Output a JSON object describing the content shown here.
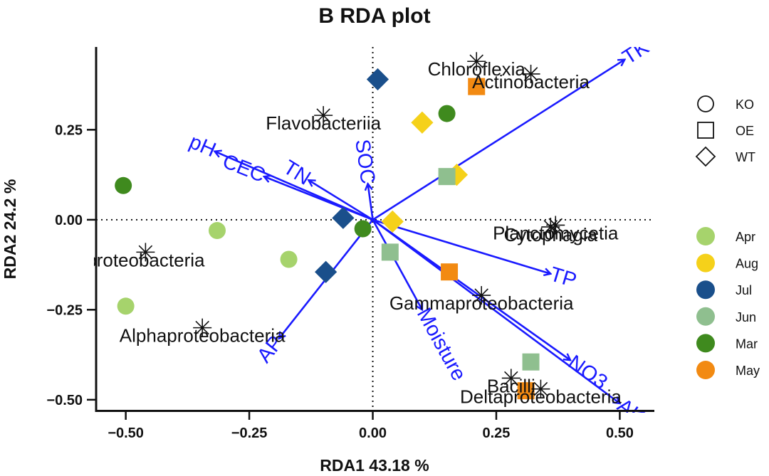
{
  "chart_data": {
    "type": "scatter",
    "title": "B RDA plot",
    "xlabel": "RDA1 43.18  %",
    "ylabel": "RDA2 24.2  %",
    "xlim": [
      -0.56,
      0.57
    ],
    "ylim": [
      -0.53,
      0.48
    ],
    "xticks": [
      -0.5,
      -0.25,
      0.0,
      0.25,
      0.5
    ],
    "xtick_labels": [
      "−0.50",
      "−0.25",
      "0.00",
      "0.25",
      "0.50"
    ],
    "yticks": [
      -0.5,
      -0.25,
      0.0,
      0.25
    ],
    "ytick_labels": [
      "−0.50",
      "−0.25",
      "0.00",
      "0.25"
    ],
    "reference_lines": {
      "x": 0,
      "y": 0,
      "style": "dotted"
    },
    "shape_legend": [
      {
        "label": "KO",
        "shape": "circle"
      },
      {
        "label": "OE",
        "shape": "square"
      },
      {
        "label": "WT",
        "shape": "diamond"
      }
    ],
    "color_legend": [
      {
        "label": "Apr",
        "color": "#a6d36c"
      },
      {
        "label": "Aug",
        "color": "#f5d11a"
      },
      {
        "label": "Jul",
        "color": "#1a4f8b"
      },
      {
        "label": "Jun",
        "color": "#8fbf8f"
      },
      {
        "label": "Mar",
        "color": "#3f8a1e"
      },
      {
        "label": "May",
        "color": "#f28a12"
      }
    ],
    "samples": [
      {
        "x": 0.01,
        "y": 0.39,
        "shape": "diamond",
        "month": "Jul"
      },
      {
        "x": 0.21,
        "y": 0.37,
        "shape": "square",
        "month": "May"
      },
      {
        "x": 0.1,
        "y": 0.27,
        "shape": "diamond",
        "month": "Aug"
      },
      {
        "x": 0.15,
        "y": 0.295,
        "shape": "circle",
        "month": "Mar"
      },
      {
        "x": 0.17,
        "y": 0.125,
        "shape": "diamond",
        "month": "Aug"
      },
      {
        "x": 0.15,
        "y": 0.12,
        "shape": "square",
        "month": "Jun"
      },
      {
        "x": -0.505,
        "y": 0.095,
        "shape": "circle",
        "month": "Mar"
      },
      {
        "x": -0.06,
        "y": 0.005,
        "shape": "diamond",
        "month": "Jul"
      },
      {
        "x": -0.02,
        "y": -0.025,
        "shape": "circle",
        "month": "Mar"
      },
      {
        "x": 0.04,
        "y": -0.005,
        "shape": "diamond",
        "month": "Aug"
      },
      {
        "x": -0.315,
        "y": -0.03,
        "shape": "circle",
        "month": "Apr"
      },
      {
        "x": -0.17,
        "y": -0.11,
        "shape": "circle",
        "month": "Apr"
      },
      {
        "x": 0.035,
        "y": -0.09,
        "shape": "square",
        "month": "Jun"
      },
      {
        "x": 0.155,
        "y": -0.145,
        "shape": "square",
        "month": "May"
      },
      {
        "x": -0.095,
        "y": -0.145,
        "shape": "diamond",
        "month": "Jul"
      },
      {
        "x": -0.5,
        "y": -0.24,
        "shape": "circle",
        "month": "Apr"
      },
      {
        "x": 0.32,
        "y": -0.395,
        "shape": "square",
        "month": "Jun"
      },
      {
        "x": 0.31,
        "y": -0.475,
        "shape": "square",
        "month": "May"
      }
    ],
    "species": [
      {
        "label": "Chloroflexia",
        "x": 0.21,
        "y": 0.44
      },
      {
        "label": "Actinobacteria",
        "x": 0.32,
        "y": 0.405
      },
      {
        "label": "Flavobacteriia",
        "x": -0.1,
        "y": 0.29
      },
      {
        "label": "Planctomycetia",
        "x": 0.37,
        "y": -0.015
      },
      {
        "label": "Cytophagia",
        "x": 0.36,
        "y": -0.02
      },
      {
        "label": "proteobacteria",
        "x": -0.46,
        "y": -0.09
      },
      {
        "label": "Gammaproteobacteria",
        "x": 0.22,
        "y": -0.21
      },
      {
        "label": "Alphaproteobacteria",
        "x": -0.345,
        "y": -0.3
      },
      {
        "label": "Bacilli",
        "x": 0.28,
        "y": -0.44
      },
      {
        "label": "Deltaproteobacteria",
        "x": 0.34,
        "y": -0.47
      }
    ],
    "environmental_vectors": [
      {
        "label": "TK",
        "x": 0.51,
        "y": 0.445
      },
      {
        "label": "pH",
        "x": -0.32,
        "y": 0.19
      },
      {
        "label": "CEC",
        "x": -0.22,
        "y": 0.12
      },
      {
        "label": "TN",
        "x": -0.13,
        "y": 0.11
      },
      {
        "label": "SOC",
        "x": -0.01,
        "y": 0.1
      },
      {
        "label": "TP",
        "x": 0.36,
        "y": -0.15
      },
      {
        "label": "Moisture",
        "x": 0.1,
        "y": -0.25
      },
      {
        "label": "AP",
        "x": -0.19,
        "y": -0.33
      },
      {
        "label": "NO3",
        "x": 0.4,
        "y": -0.39
      },
      {
        "label": "AK",
        "x": 0.5,
        "y": -0.51
      }
    ]
  }
}
